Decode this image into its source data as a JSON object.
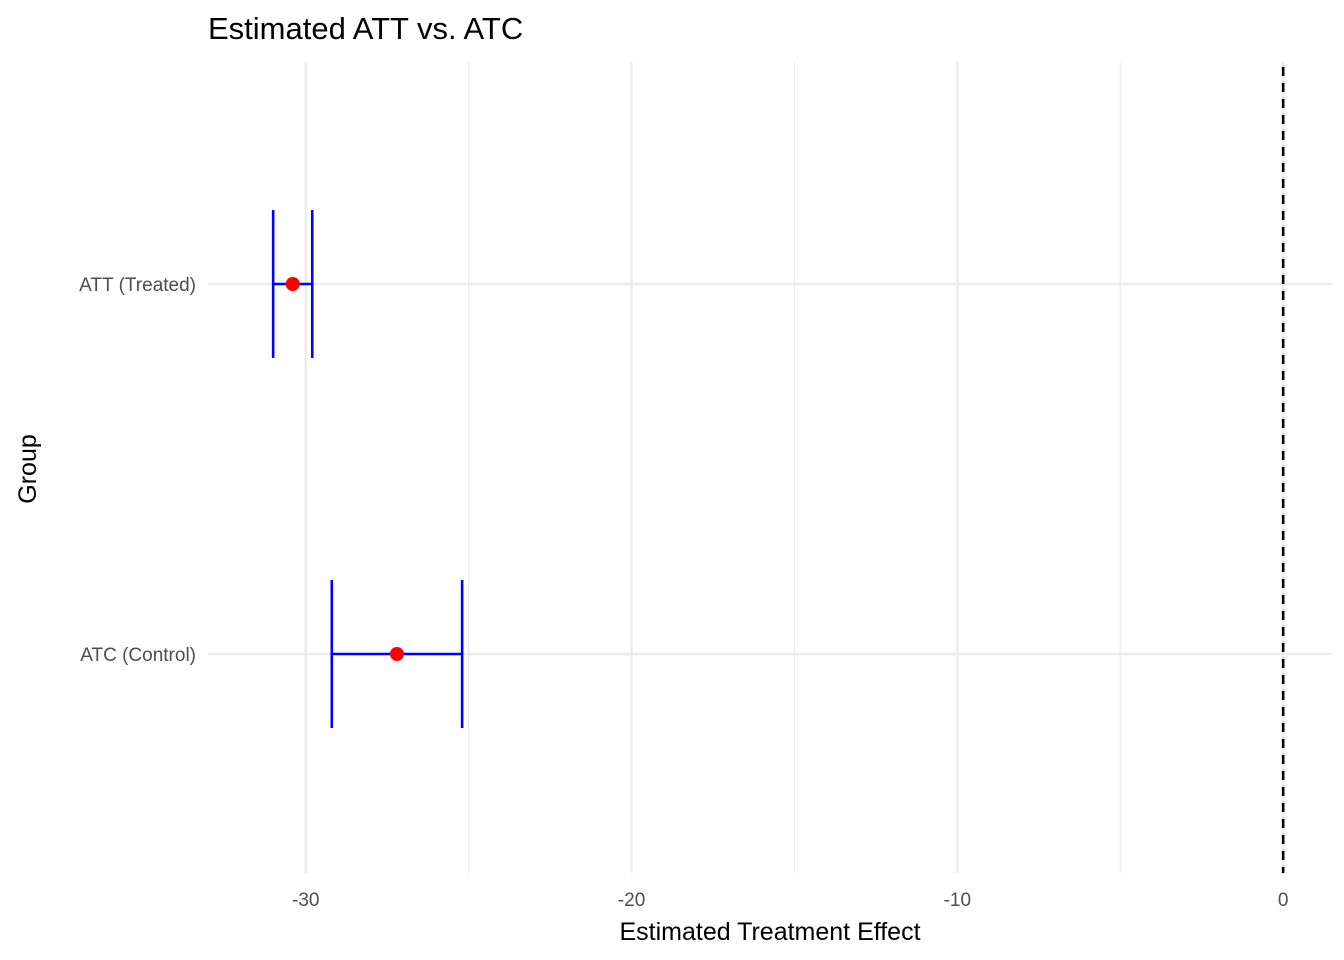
{
  "chart_data": {
    "type": "errorbar",
    "title": "Estimated ATT vs. ATC",
    "xlabel": "Estimated Treatment Effect",
    "ylabel": "Group",
    "xlim": [
      -33,
      1.5
    ],
    "x_ticks": [
      -30,
      -20,
      -10,
      0
    ],
    "x_tick_labels": [
      "-30",
      "-20",
      "-10",
      "0"
    ],
    "categories": [
      "ATT (Treated)",
      "ATC (Control)"
    ],
    "estimates": [
      -30.4,
      -27.2
    ],
    "lower": [
      -31.0,
      -29.2
    ],
    "upper": [
      -29.8,
      -25.2
    ],
    "reference_line": {
      "x": 0,
      "style": "dashed"
    },
    "grid": true,
    "legend": "none",
    "colors": {
      "point": "#ff0000",
      "errorbar": "#0000ff",
      "grid": "#ebebeb",
      "reference": "#000000"
    }
  }
}
